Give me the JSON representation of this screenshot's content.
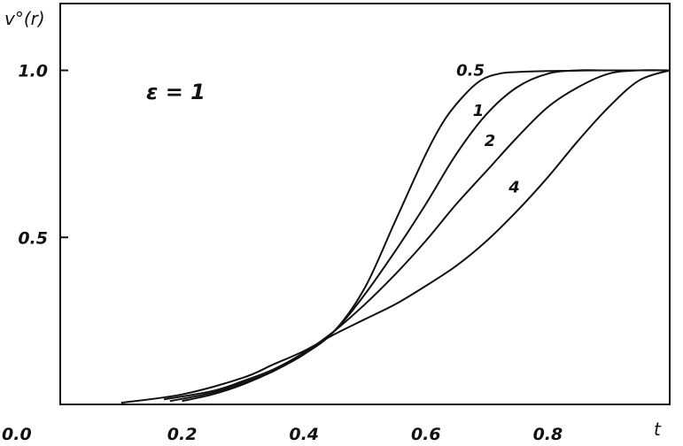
{
  "chart_data": {
    "type": "line",
    "ylabel": "v°(r)",
    "xlabel": "t",
    "annotation": "ε = 1",
    "xlim": [
      0.0,
      1.0
    ],
    "ylim": [
      0.0,
      1.2
    ],
    "xticks": [
      {
        "value": 0.0,
        "label": "0.0"
      },
      {
        "value": 0.2,
        "label": "0.2"
      },
      {
        "value": 0.4,
        "label": "0.4"
      },
      {
        "value": 0.6,
        "label": "0.6"
      },
      {
        "value": 0.8,
        "label": "0.8"
      }
    ],
    "yticks": [
      {
        "value": 0.5,
        "label": "0.5"
      },
      {
        "value": 1.0,
        "label": "1.0"
      }
    ],
    "grid": false,
    "series": [
      {
        "name": "0.5",
        "x": [
          0.2,
          0.25,
          0.3,
          0.35,
          0.4,
          0.45,
          0.5,
          0.55,
          0.6,
          0.63,
          0.66,
          0.69,
          0.72,
          0.75,
          0.8,
          0.9,
          1.0
        ],
        "y": [
          0.01,
          0.03,
          0.06,
          0.1,
          0.15,
          0.22,
          0.35,
          0.55,
          0.75,
          0.85,
          0.92,
          0.97,
          0.99,
          0.995,
          0.998,
          1.0,
          1.0
        ]
      },
      {
        "name": "1",
        "x": [
          0.18,
          0.25,
          0.3,
          0.35,
          0.4,
          0.45,
          0.5,
          0.55,
          0.6,
          0.65,
          0.7,
          0.75,
          0.8,
          0.85,
          0.9,
          1.0
        ],
        "y": [
          0.01,
          0.035,
          0.065,
          0.1,
          0.155,
          0.22,
          0.33,
          0.46,
          0.6,
          0.75,
          0.87,
          0.95,
          0.99,
          1.0,
          1.0,
          1.0
        ]
      },
      {
        "name": "2",
        "x": [
          0.17,
          0.25,
          0.3,
          0.35,
          0.4,
          0.45,
          0.5,
          0.55,
          0.6,
          0.65,
          0.7,
          0.75,
          0.8,
          0.85,
          0.9,
          0.95,
          1.0
        ],
        "y": [
          0.015,
          0.04,
          0.07,
          0.105,
          0.155,
          0.22,
          0.3,
          0.39,
          0.49,
          0.6,
          0.7,
          0.8,
          0.89,
          0.95,
          0.99,
          1.0,
          1.0
        ]
      },
      {
        "name": "4",
        "x": [
          0.1,
          0.2,
          0.3,
          0.35,
          0.4,
          0.45,
          0.5,
          0.55,
          0.6,
          0.65,
          0.7,
          0.75,
          0.8,
          0.85,
          0.9,
          0.95,
          1.0
        ],
        "y": [
          0.005,
          0.03,
          0.08,
          0.12,
          0.16,
          0.21,
          0.255,
          0.3,
          0.355,
          0.415,
          0.49,
          0.58,
          0.68,
          0.79,
          0.89,
          0.97,
          1.0
        ]
      }
    ],
    "curve_labels": [
      {
        "text": "0.5",
        "x": 0.673,
        "y": 1.0
      },
      {
        "text": "1",
        "x": 0.686,
        "y": 0.88
      },
      {
        "text": "2",
        "x": 0.705,
        "y": 0.79
      },
      {
        "text": "4",
        "x": 0.745,
        "y": 0.65
      }
    ]
  }
}
